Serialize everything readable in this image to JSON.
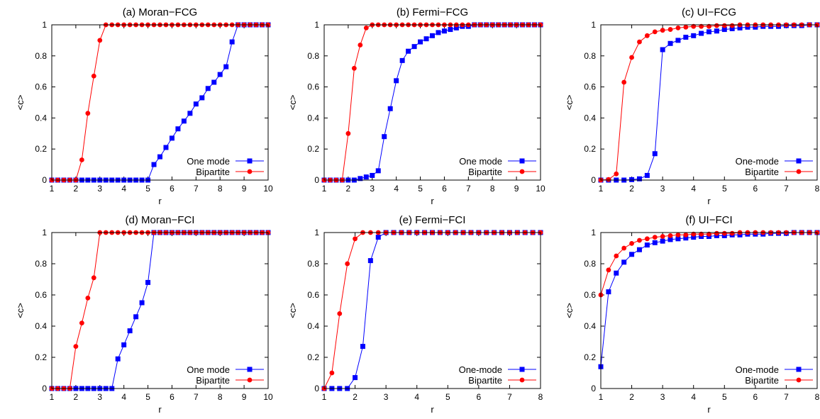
{
  "chart_data": [
    {
      "type": "line",
      "title": "(a) Moran−FCG",
      "xlabel": "r",
      "ylabel": "<c>",
      "xlim": [
        1,
        10
      ],
      "ylim": [
        0,
        1
      ],
      "xticks": [
        1,
        2,
        3,
        4,
        5,
        6,
        7,
        8,
        9,
        10
      ],
      "xtick_labels": [
        "1",
        "2",
        "3",
        "4",
        "5",
        "6",
        "7",
        "8",
        "9",
        "10"
      ],
      "yticks": [
        0,
        0.2,
        0.4,
        0.6,
        0.8,
        1
      ],
      "ytick_labels": [
        "0",
        "0.2",
        "0.4",
        "0.6",
        "0.8",
        "1"
      ],
      "legend_position": "bottom-right",
      "series": [
        {
          "name": "One mode",
          "color": "#0000ff",
          "marker": "square",
          "x": [
            1,
            1.25,
            1.5,
            1.75,
            2,
            2.25,
            2.5,
            2.75,
            3,
            3.25,
            3.5,
            3.75,
            4,
            4.25,
            4.5,
            4.75,
            5,
            5.25,
            5.5,
            5.75,
            6,
            6.25,
            6.5,
            6.75,
            7,
            7.25,
            7.5,
            7.75,
            8,
            8.25,
            8.5,
            8.75,
            9,
            9.25,
            9.5,
            9.75,
            10
          ],
          "y": [
            0,
            0,
            0,
            0,
            0,
            0,
            0,
            0,
            0,
            0,
            0,
            0,
            0,
            0,
            0,
            0,
            0,
            0.1,
            0.15,
            0.21,
            0.27,
            0.33,
            0.38,
            0.43,
            0.49,
            0.53,
            0.59,
            0.63,
            0.68,
            0.73,
            0.89,
            1,
            1,
            1,
            1,
            1,
            1
          ]
        },
        {
          "name": "Bipartite",
          "color": "#ff0000",
          "marker": "circle",
          "x": [
            1,
            1.25,
            1.5,
            1.75,
            2,
            2.25,
            2.5,
            2.75,
            3,
            3.25,
            3.5,
            3.75,
            4,
            4.25,
            4.5,
            4.75,
            5,
            5.25,
            5.5,
            5.75,
            6,
            6.25,
            6.5,
            6.75,
            7,
            7.25,
            7.5,
            7.75,
            8,
            8.25,
            8.5,
            8.75,
            9,
            9.25,
            9.5,
            9.75,
            10
          ],
          "y": [
            0,
            0,
            0,
            0,
            0,
            0.13,
            0.43,
            0.67,
            0.9,
            1,
            1,
            1,
            1,
            1,
            1,
            1,
            1,
            1,
            1,
            1,
            1,
            1,
            1,
            1,
            1,
            1,
            1,
            1,
            1,
            1,
            1,
            1,
            1,
            1,
            1,
            1,
            1
          ]
        }
      ]
    },
    {
      "type": "line",
      "title": "(b) Fermi−FCG",
      "xlabel": "r",
      "ylabel": "<c>",
      "xlim": [
        1,
        10
      ],
      "ylim": [
        0,
        1
      ],
      "xticks": [
        1,
        2,
        3,
        4,
        5,
        6,
        7,
        8,
        9,
        10
      ],
      "xtick_labels": [
        "1",
        "2",
        "3",
        "4",
        "5",
        "6",
        "7",
        "8",
        "9",
        "10"
      ],
      "yticks": [
        0,
        0.2,
        0.4,
        0.6,
        0.8,
        1
      ],
      "ytick_labels": [
        "0",
        "0.2",
        "0.4",
        "0.6",
        "0.8",
        "1"
      ],
      "legend_position": "bottom-right",
      "series": [
        {
          "name": "One mode",
          "color": "#0000ff",
          "marker": "square",
          "x": [
            1,
            1.25,
            1.5,
            1.75,
            2,
            2.25,
            2.5,
            2.75,
            3,
            3.25,
            3.5,
            3.75,
            4,
            4.25,
            4.5,
            4.75,
            5,
            5.25,
            5.5,
            5.75,
            6,
            6.25,
            6.5,
            6.75,
            7,
            7.25,
            7.5,
            7.75,
            8,
            8.25,
            8.5,
            8.75,
            9,
            9.25,
            9.5,
            9.75,
            10
          ],
          "y": [
            0,
            0,
            0,
            0,
            0,
            0,
            0.01,
            0.02,
            0.03,
            0.06,
            0.28,
            0.46,
            0.64,
            0.77,
            0.83,
            0.86,
            0.89,
            0.91,
            0.93,
            0.95,
            0.96,
            0.97,
            0.98,
            0.99,
            0.99,
            1,
            1,
            1,
            1,
            1,
            1,
            1,
            1,
            1,
            1,
            1,
            1
          ]
        },
        {
          "name": "Bipartite",
          "color": "#ff0000",
          "marker": "circle",
          "x": [
            1,
            1.25,
            1.5,
            1.75,
            2,
            2.25,
            2.5,
            2.75,
            3,
            3.25,
            3.5,
            3.75,
            4,
            4.25,
            4.5,
            4.75,
            5,
            5.25,
            5.5,
            5.75,
            6,
            6.25,
            6.5,
            6.75,
            7,
            7.25,
            7.5,
            7.75,
            8,
            8.25,
            8.5,
            8.75,
            9,
            9.25,
            9.5,
            9.75,
            10
          ],
          "y": [
            0,
            0,
            0,
            0,
            0.3,
            0.72,
            0.87,
            0.98,
            1,
            1,
            1,
            1,
            1,
            1,
            1,
            1,
            1,
            1,
            1,
            1,
            1,
            1,
            1,
            1,
            1,
            1,
            1,
            1,
            1,
            1,
            1,
            1,
            1,
            1,
            1,
            1,
            1
          ]
        }
      ]
    },
    {
      "type": "line",
      "title": "(c) UI−FCG",
      "xlabel": "r",
      "ylabel": "<c>",
      "xlim": [
        1,
        8
      ],
      "ylim": [
        0,
        1
      ],
      "xticks": [
        1,
        2,
        3,
        4,
        5,
        6,
        7,
        8
      ],
      "xtick_labels": [
        "1",
        "2",
        "3",
        "4",
        "5",
        "6",
        "7",
        "8"
      ],
      "yticks": [
        0,
        0.2,
        0.4,
        0.6,
        0.8,
        1
      ],
      "ytick_labels": [
        "0",
        "0.2",
        "0.4",
        "0.6",
        "0.8",
        "1"
      ],
      "legend_position": "bottom-right",
      "series": [
        {
          "name": "One-mode",
          "color": "#0000ff",
          "marker": "square",
          "x": [
            1,
            1.25,
            1.5,
            1.75,
            2,
            2.25,
            2.5,
            2.75,
            3,
            3.25,
            3.5,
            3.75,
            4,
            4.25,
            4.5,
            4.75,
            5,
            5.25,
            5.5,
            5.75,
            6,
            6.25,
            6.5,
            6.75,
            7,
            7.25,
            7.5,
            7.75,
            8
          ],
          "y": [
            0,
            0,
            0,
            0,
            0.003,
            0.008,
            0.03,
            0.17,
            0.84,
            0.88,
            0.9,
            0.92,
            0.93,
            0.945,
            0.955,
            0.96,
            0.97,
            0.975,
            0.98,
            0.985,
            0.985,
            0.99,
            0.99,
            0.99,
            0.995,
            0.995,
            0.995,
            1,
            1
          ]
        },
        {
          "name": "Bipartite",
          "color": "#ff0000",
          "marker": "circle",
          "x": [
            1,
            1.25,
            1.5,
            1.75,
            2,
            2.25,
            2.5,
            2.75,
            3,
            3.25,
            3.5,
            3.75,
            4,
            4.25,
            4.5,
            4.75,
            5,
            5.25,
            5.5,
            5.75,
            6,
            6.25,
            6.5,
            6.75,
            7,
            7.25,
            7.5,
            7.75,
            8
          ],
          "y": [
            0,
            0.004,
            0.04,
            0.63,
            0.79,
            0.89,
            0.93,
            0.955,
            0.965,
            0.97,
            0.98,
            0.985,
            0.99,
            0.99,
            0.99,
            0.995,
            0.995,
            0.995,
            1,
            1,
            1,
            1,
            1,
            1,
            1,
            1,
            1,
            1,
            1
          ]
        }
      ]
    },
    {
      "type": "line",
      "title": "(d) Moran−FCI",
      "xlabel": "r",
      "ylabel": "<c>",
      "xlim": [
        1,
        10
      ],
      "ylim": [
        0,
        1
      ],
      "xticks": [
        1,
        2,
        3,
        4,
        5,
        6,
        7,
        8,
        9,
        10
      ],
      "xtick_labels": [
        "1",
        "2",
        "3",
        "4",
        "5",
        "6",
        "7",
        "8",
        "9",
        "10"
      ],
      "yticks": [
        0,
        0.2,
        0.4,
        0.6,
        0.8,
        1
      ],
      "ytick_labels": [
        "0",
        "0.2",
        "0.4",
        "0.6",
        "0.8",
        "1"
      ],
      "legend_position": "bottom-right",
      "series": [
        {
          "name": "One mode",
          "color": "#0000ff",
          "marker": "square",
          "x": [
            1,
            1.25,
            1.5,
            1.75,
            2,
            2.25,
            2.5,
            2.75,
            3,
            3.25,
            3.5,
            3.75,
            4,
            4.25,
            4.5,
            4.75,
            5,
            5.25,
            5.5,
            5.75,
            6,
            6.25,
            6.5,
            6.75,
            7,
            7.25,
            7.5,
            7.75,
            8,
            8.25,
            8.5,
            8.75,
            9,
            9.25,
            9.5,
            9.75,
            10
          ],
          "y": [
            0,
            0,
            0,
            0,
            0,
            0,
            0,
            0,
            0,
            0,
            0,
            0.19,
            0.28,
            0.37,
            0.46,
            0.55,
            0.68,
            1,
            1,
            1,
            1,
            1,
            1,
            1,
            1,
            1,
            1,
            1,
            1,
            1,
            1,
            1,
            1,
            1,
            1,
            1,
            1
          ]
        },
        {
          "name": "Bipartite",
          "color": "#ff0000",
          "marker": "circle",
          "x": [
            1,
            1.25,
            1.5,
            1.75,
            2,
            2.25,
            2.5,
            2.75,
            3,
            3.25,
            3.5,
            3.75,
            4,
            4.25,
            4.5,
            4.75,
            5,
            5.25,
            5.5,
            5.75,
            6,
            6.25,
            6.5,
            6.75,
            7,
            7.25,
            7.5,
            7.75,
            8,
            8.25,
            8.5,
            8.75,
            9,
            9.25,
            9.5,
            9.75,
            10
          ],
          "y": [
            0,
            0,
            0,
            0,
            0.27,
            0.42,
            0.58,
            0.71,
            1,
            1,
            1,
            1,
            1,
            1,
            1,
            1,
            1,
            1,
            1,
            1,
            1,
            1,
            1,
            1,
            1,
            1,
            1,
            1,
            1,
            1,
            1,
            1,
            1,
            1,
            1,
            1,
            1
          ]
        }
      ]
    },
    {
      "type": "line",
      "title": "(e) Fermi−FCI",
      "xlabel": "r",
      "ylabel": "<c>",
      "xlim": [
        1,
        8
      ],
      "ylim": [
        0,
        1
      ],
      "xticks": [
        1,
        2,
        3,
        4,
        5,
        6,
        7,
        8
      ],
      "xtick_labels": [
        "1",
        "2",
        "3",
        "4",
        "5",
        "6",
        "7",
        "8"
      ],
      "yticks": [
        0,
        0.2,
        0.4,
        0.6,
        0.8,
        1
      ],
      "ytick_labels": [
        "0",
        "0.2",
        "0.4",
        "0.6",
        "0.8",
        "1"
      ],
      "legend_position": "bottom-right",
      "series": [
        {
          "name": "One-mode",
          "color": "#0000ff",
          "marker": "square",
          "x": [
            1,
            1.25,
            1.5,
            1.75,
            2,
            2.25,
            2.5,
            2.75,
            3,
            3.25,
            3.5,
            3.75,
            4,
            4.25,
            4.5,
            4.75,
            5,
            5.25,
            5.5,
            5.75,
            6,
            6.25,
            6.5,
            6.75,
            7,
            7.25,
            7.5,
            7.75,
            8
          ],
          "y": [
            0,
            0,
            0,
            0,
            0.07,
            0.27,
            0.82,
            0.97,
            1,
            1,
            1,
            1,
            1,
            1,
            1,
            1,
            1,
            1,
            1,
            1,
            1,
            1,
            1,
            1,
            1,
            1,
            1,
            1,
            1
          ]
        },
        {
          "name": "Bipartite",
          "color": "#ff0000",
          "marker": "circle",
          "x": [
            1,
            1.25,
            1.5,
            1.75,
            2,
            2.25,
            2.5,
            2.75,
            3,
            3.25,
            3.5,
            3.75,
            4,
            4.25,
            4.5,
            4.75,
            5,
            5.25,
            5.5,
            5.75,
            6,
            6.25,
            6.5,
            6.75,
            7,
            7.25,
            7.5,
            7.75,
            8
          ],
          "y": [
            0,
            0.1,
            0.48,
            0.8,
            0.96,
            1,
            1,
            1,
            1,
            1,
            1,
            1,
            1,
            1,
            1,
            1,
            1,
            1,
            1,
            1,
            1,
            1,
            1,
            1,
            1,
            1,
            1,
            1,
            1
          ]
        }
      ]
    },
    {
      "type": "line",
      "title": "(f) UI−FCI",
      "xlabel": "r",
      "ylabel": "<c>",
      "xlim": [
        1,
        8
      ],
      "ylim": [
        0,
        1
      ],
      "xticks": [
        1,
        2,
        3,
        4,
        5,
        6,
        7,
        8
      ],
      "xtick_labels": [
        "1",
        "2",
        "3",
        "4",
        "5",
        "6",
        "7",
        "8"
      ],
      "yticks": [
        0,
        0.2,
        0.4,
        0.6,
        0.8,
        1
      ],
      "ytick_labels": [
        "0",
        "0.2",
        "0.4",
        "0.6",
        "0.8",
        "1"
      ],
      "legend_position": "bottom-right",
      "series": [
        {
          "name": "One-mode",
          "color": "#0000ff",
          "marker": "square",
          "x": [
            1,
            1.25,
            1.5,
            1.75,
            2,
            2.25,
            2.5,
            2.75,
            3,
            3.25,
            3.5,
            3.75,
            4,
            4.25,
            4.5,
            4.75,
            5,
            5.25,
            5.5,
            5.75,
            6,
            6.25,
            6.5,
            6.75,
            7,
            7.25,
            7.5,
            7.75,
            8
          ],
          "y": [
            0.14,
            0.62,
            0.74,
            0.81,
            0.86,
            0.89,
            0.92,
            0.935,
            0.945,
            0.955,
            0.96,
            0.965,
            0.97,
            0.975,
            0.975,
            0.98,
            0.98,
            0.985,
            0.985,
            0.99,
            0.99,
            0.99,
            0.995,
            0.995,
            0.995,
            1,
            1,
            1,
            1
          ]
        },
        {
          "name": "Bipartite",
          "color": "#ff0000",
          "marker": "circle",
          "x": [
            1,
            1.25,
            1.5,
            1.75,
            2,
            2.25,
            2.5,
            2.75,
            3,
            3.25,
            3.5,
            3.75,
            4,
            4.25,
            4.5,
            4.75,
            5,
            5.25,
            5.5,
            5.75,
            6,
            6.25,
            6.5,
            6.75,
            7,
            7.25,
            7.5,
            7.75,
            8
          ],
          "y": [
            0.6,
            0.76,
            0.85,
            0.9,
            0.93,
            0.95,
            0.96,
            0.97,
            0.975,
            0.98,
            0.985,
            0.985,
            0.99,
            0.99,
            0.99,
            0.995,
            0.995,
            0.995,
            1,
            1,
            1,
            1,
            1,
            1,
            1,
            1,
            1,
            1,
            1
          ]
        }
      ]
    }
  ]
}
